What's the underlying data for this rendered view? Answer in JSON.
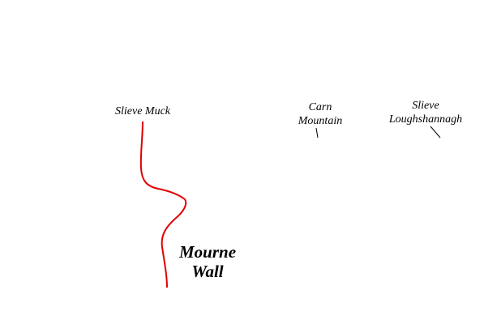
{
  "labels": [
    {
      "lines": [
        "Slieve Muck"
      ]
    },
    {
      "lines": [
        "Carn",
        "Mountain"
      ]
    },
    {
      "lines": [
        "Slieve",
        "Loughshannagh"
      ]
    },
    {
      "lines": [
        "Mourne",
        "Wall"
      ]
    }
  ]
}
